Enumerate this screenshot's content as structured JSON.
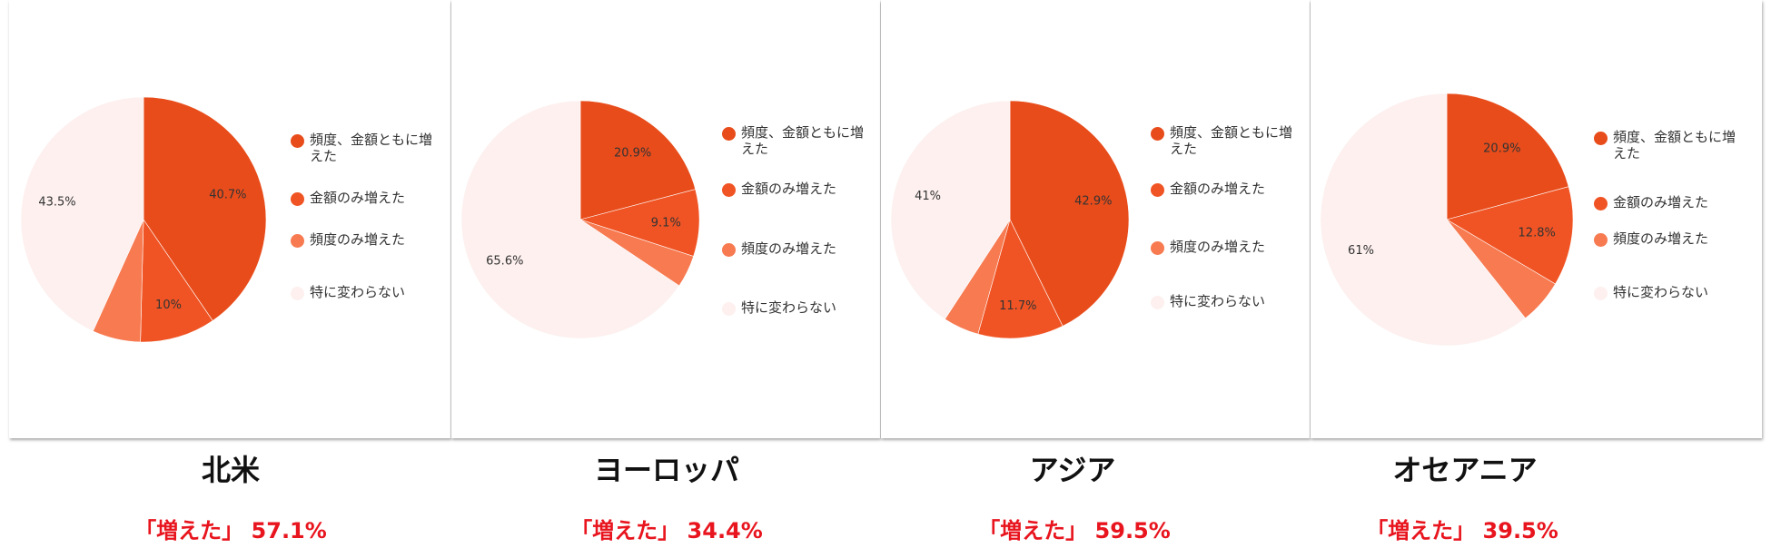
{
  "legend_labels": [
    "頻度、金額ともに増えた",
    "金額のみ増えた",
    "頻度のみ増えた",
    "特に変わらない"
  ],
  "colors": [
    "#e84c1b",
    "#f05424",
    "#f77a51",
    "#fdf0ef"
  ],
  "chart_data": [
    {
      "type": "pie",
      "region": "北米",
      "summary": "「増えた」 57.1%",
      "series": [
        {
          "label": "頻度、金額ともに増えた",
          "value": 40.7,
          "shown": "40.7%"
        },
        {
          "label": "金額のみ増えた",
          "value": 10,
          "shown": "10%"
        },
        {
          "label": "頻度のみ増えた",
          "value": 6.4,
          "shown": ""
        },
        {
          "label": "特に変わらない",
          "value": 43.5,
          "shown": "43.5%"
        }
      ]
    },
    {
      "type": "pie",
      "region": "ヨーロッパ",
      "summary": "「増えた」 34.4%",
      "series": [
        {
          "label": "頻度、金額ともに増えた",
          "value": 20.9,
          "shown": "20.9%"
        },
        {
          "label": "金額のみ増えた",
          "value": 9.1,
          "shown": "9.1%"
        },
        {
          "label": "頻度のみ増えた",
          "value": 4.4,
          "shown": ""
        },
        {
          "label": "特に変わらない",
          "value": 65.6,
          "shown": "65.6%"
        }
      ]
    },
    {
      "type": "pie",
      "region": "アジア",
      "summary": "「増えた」 59.5%",
      "series": [
        {
          "label": "頻度、金額ともに増えた",
          "value": 42.9,
          "shown": "42.9%"
        },
        {
          "label": "金額のみ増えた",
          "value": 11.7,
          "shown": "11.7%"
        },
        {
          "label": "頻度のみ増えた",
          "value": 4.9,
          "shown": ""
        },
        {
          "label": "特に変わらない",
          "value": 41,
          "shown": "41%"
        }
      ]
    },
    {
      "type": "pie",
      "region": "オセアニア",
      "summary": "「増えた」 39.5%",
      "series": [
        {
          "label": "頻度、金額ともに増えた",
          "value": 20.9,
          "shown": "20.9%"
        },
        {
          "label": "金額のみ増えた",
          "value": 12.8,
          "shown": "12.8%"
        },
        {
          "label": "頻度のみ増えた",
          "value": 5.8,
          "shown": ""
        },
        {
          "label": "特に変わらない",
          "value": 61,
          "shown": "61%"
        }
      ]
    }
  ]
}
